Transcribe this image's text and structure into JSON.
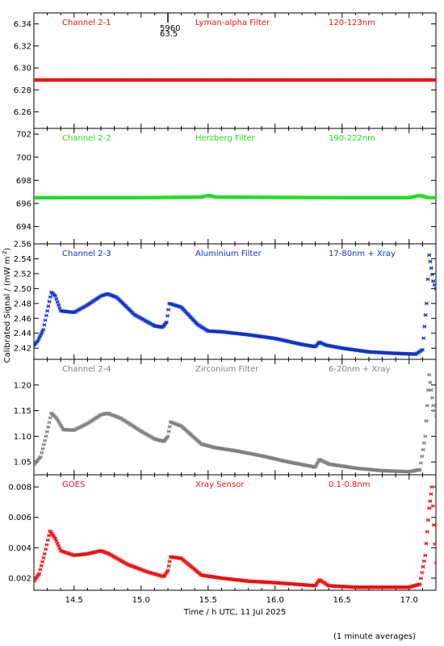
{
  "chart_data": {
    "type": "scatter",
    "x_label": "Time / h UTC, 11 Jul 2025",
    "y_label": "Calibrated Signal / (mW m",
    "y_label_sup": "-2",
    "y_label_end": ")",
    "footnote": "(1 minute averages)",
    "x_range": [
      14.2,
      17.2
    ],
    "x_ticks": [
      14.5,
      15.0,
      15.5,
      16.0,
      16.5,
      17.0
    ],
    "x_tick_labels": [
      "14.5",
      "15.0",
      "15.5",
      "16.0",
      "16.5",
      "17.0"
    ],
    "panels": [
      {
        "channel": "Channel 2-1",
        "filter": "Lyman-alpha Filter",
        "band": "120-123nm",
        "color": "#ee1111",
        "ylim": [
          6.245,
          6.35
        ],
        "y_ticks": [
          "6.26",
          "6.28",
          "6.30",
          "6.32",
          "6.34"
        ],
        "marker_label_top": "5960",
        "marker_label_bottom": "63.5",
        "marker_x": 15.2,
        "points": [
          [
            14.2,
            6.289
          ],
          [
            17.2,
            6.289
          ]
        ]
      },
      {
        "channel": "Channel 2-2",
        "filter": "Herzberg Filter",
        "band": "190-222nm",
        "color": "#22dd22",
        "ylim": [
          692.5,
          702.5
        ],
        "y_ticks": [
          "694",
          "696",
          "698",
          "700",
          "702"
        ],
        "points": [
          [
            14.2,
            696.5
          ],
          [
            15.0,
            696.5
          ],
          [
            15.45,
            696.55
          ],
          [
            15.5,
            696.7
          ],
          [
            15.56,
            696.55
          ],
          [
            16.5,
            696.5
          ],
          [
            17.0,
            696.5
          ],
          [
            17.08,
            696.7
          ],
          [
            17.14,
            696.5
          ],
          [
            17.2,
            696.5
          ]
        ]
      },
      {
        "channel": "Channel 2-3",
        "filter": "Aluminium Filter",
        "band": "17-80nm + Xray",
        "color": "#1133cc",
        "ylim": [
          2.405,
          2.56
        ],
        "y_ticks": [
          "2.42",
          "2.44",
          "2.46",
          "2.48",
          "2.50",
          "2.52",
          "2.54",
          "2.56"
        ],
        "points": [
          [
            14.2,
            2.424
          ],
          [
            14.23,
            2.43
          ],
          [
            14.27,
            2.445
          ],
          [
            14.3,
            2.47
          ],
          [
            14.33,
            2.495
          ],
          [
            14.36,
            2.49
          ],
          [
            14.4,
            2.47
          ],
          [
            14.5,
            2.468
          ],
          [
            14.6,
            2.478
          ],
          [
            14.7,
            2.49
          ],
          [
            14.75,
            2.493
          ],
          [
            14.82,
            2.488
          ],
          [
            14.95,
            2.465
          ],
          [
            15.1,
            2.45
          ],
          [
            15.16,
            2.448
          ],
          [
            15.19,
            2.455
          ],
          [
            15.21,
            2.48
          ],
          [
            15.3,
            2.475
          ],
          [
            15.42,
            2.452
          ],
          [
            15.5,
            2.443
          ],
          [
            15.6,
            2.442
          ],
          [
            15.8,
            2.438
          ],
          [
            16.0,
            2.433
          ],
          [
            16.2,
            2.425
          ],
          [
            16.3,
            2.422
          ],
          [
            16.33,
            2.428
          ],
          [
            16.38,
            2.424
          ],
          [
            16.5,
            2.42
          ],
          [
            16.7,
            2.415
          ],
          [
            16.9,
            2.413
          ],
          [
            17.05,
            2.412
          ],
          [
            17.1,
            2.418
          ],
          [
            17.13,
            2.48
          ],
          [
            17.15,
            2.545
          ],
          [
            17.18,
            2.51
          ],
          [
            17.2,
            2.5
          ]
        ]
      },
      {
        "channel": "Channel 2-4",
        "filter": "Zirconium Filter",
        "band": "6-20nm + Xray",
        "color": "#808080",
        "ylim": [
          1.025,
          1.25
        ],
        "y_ticks": [
          "1.05",
          "1.10",
          "1.15",
          "1.20"
        ],
        "points": [
          [
            14.2,
            1.045
          ],
          [
            14.25,
            1.06
          ],
          [
            14.29,
            1.1
          ],
          [
            14.33,
            1.145
          ],
          [
            14.37,
            1.135
          ],
          [
            14.42,
            1.113
          ],
          [
            14.5,
            1.112
          ],
          [
            14.6,
            1.125
          ],
          [
            14.7,
            1.142
          ],
          [
            14.75,
            1.145
          ],
          [
            14.85,
            1.135
          ],
          [
            15.0,
            1.11
          ],
          [
            15.1,
            1.095
          ],
          [
            15.17,
            1.09
          ],
          [
            15.2,
            1.1
          ],
          [
            15.22,
            1.128
          ],
          [
            15.3,
            1.12
          ],
          [
            15.45,
            1.085
          ],
          [
            15.55,
            1.078
          ],
          [
            15.7,
            1.072
          ],
          [
            15.9,
            1.062
          ],
          [
            16.1,
            1.05
          ],
          [
            16.3,
            1.04
          ],
          [
            16.33,
            1.055
          ],
          [
            16.4,
            1.046
          ],
          [
            16.6,
            1.038
          ],
          [
            16.8,
            1.033
          ],
          [
            17.0,
            1.031
          ],
          [
            17.08,
            1.035
          ],
          [
            17.12,
            1.1
          ],
          [
            17.15,
            1.22
          ],
          [
            17.18,
            1.16
          ],
          [
            17.2,
            1.14
          ]
        ]
      },
      {
        "channel": "GOES",
        "filter": "Xray Sensor",
        "band": "0.1-0.8nm",
        "color": "#ee1111",
        "ylim": [
          0.0012,
          0.0088
        ],
        "y_ticks": [
          "0.002",
          "0.004",
          "0.006",
          "0.008"
        ],
        "points": [
          [
            14.2,
            0.0018
          ],
          [
            14.24,
            0.0023
          ],
          [
            14.28,
            0.0036
          ],
          [
            14.32,
            0.0051
          ],
          [
            14.36,
            0.0046
          ],
          [
            14.4,
            0.0038
          ],
          [
            14.5,
            0.0035
          ],
          [
            14.6,
            0.0036
          ],
          [
            14.7,
            0.0038
          ],
          [
            14.76,
            0.0036
          ],
          [
            14.9,
            0.0029
          ],
          [
            15.05,
            0.0024
          ],
          [
            15.17,
            0.0021
          ],
          [
            15.2,
            0.0025
          ],
          [
            15.22,
            0.0034
          ],
          [
            15.3,
            0.0033
          ],
          [
            15.45,
            0.0022
          ],
          [
            15.6,
            0.002
          ],
          [
            15.8,
            0.0018
          ],
          [
            16.0,
            0.0017
          ],
          [
            16.3,
            0.0015
          ],
          [
            16.33,
            0.0019
          ],
          [
            16.4,
            0.0015
          ],
          [
            16.6,
            0.0014
          ],
          [
            16.8,
            0.0014
          ],
          [
            17.0,
            0.0014
          ],
          [
            17.08,
            0.0016
          ],
          [
            17.12,
            0.0035
          ],
          [
            17.15,
            0.0066
          ],
          [
            17.17,
            0.008
          ],
          [
            17.2,
            0.003
          ]
        ]
      }
    ]
  }
}
